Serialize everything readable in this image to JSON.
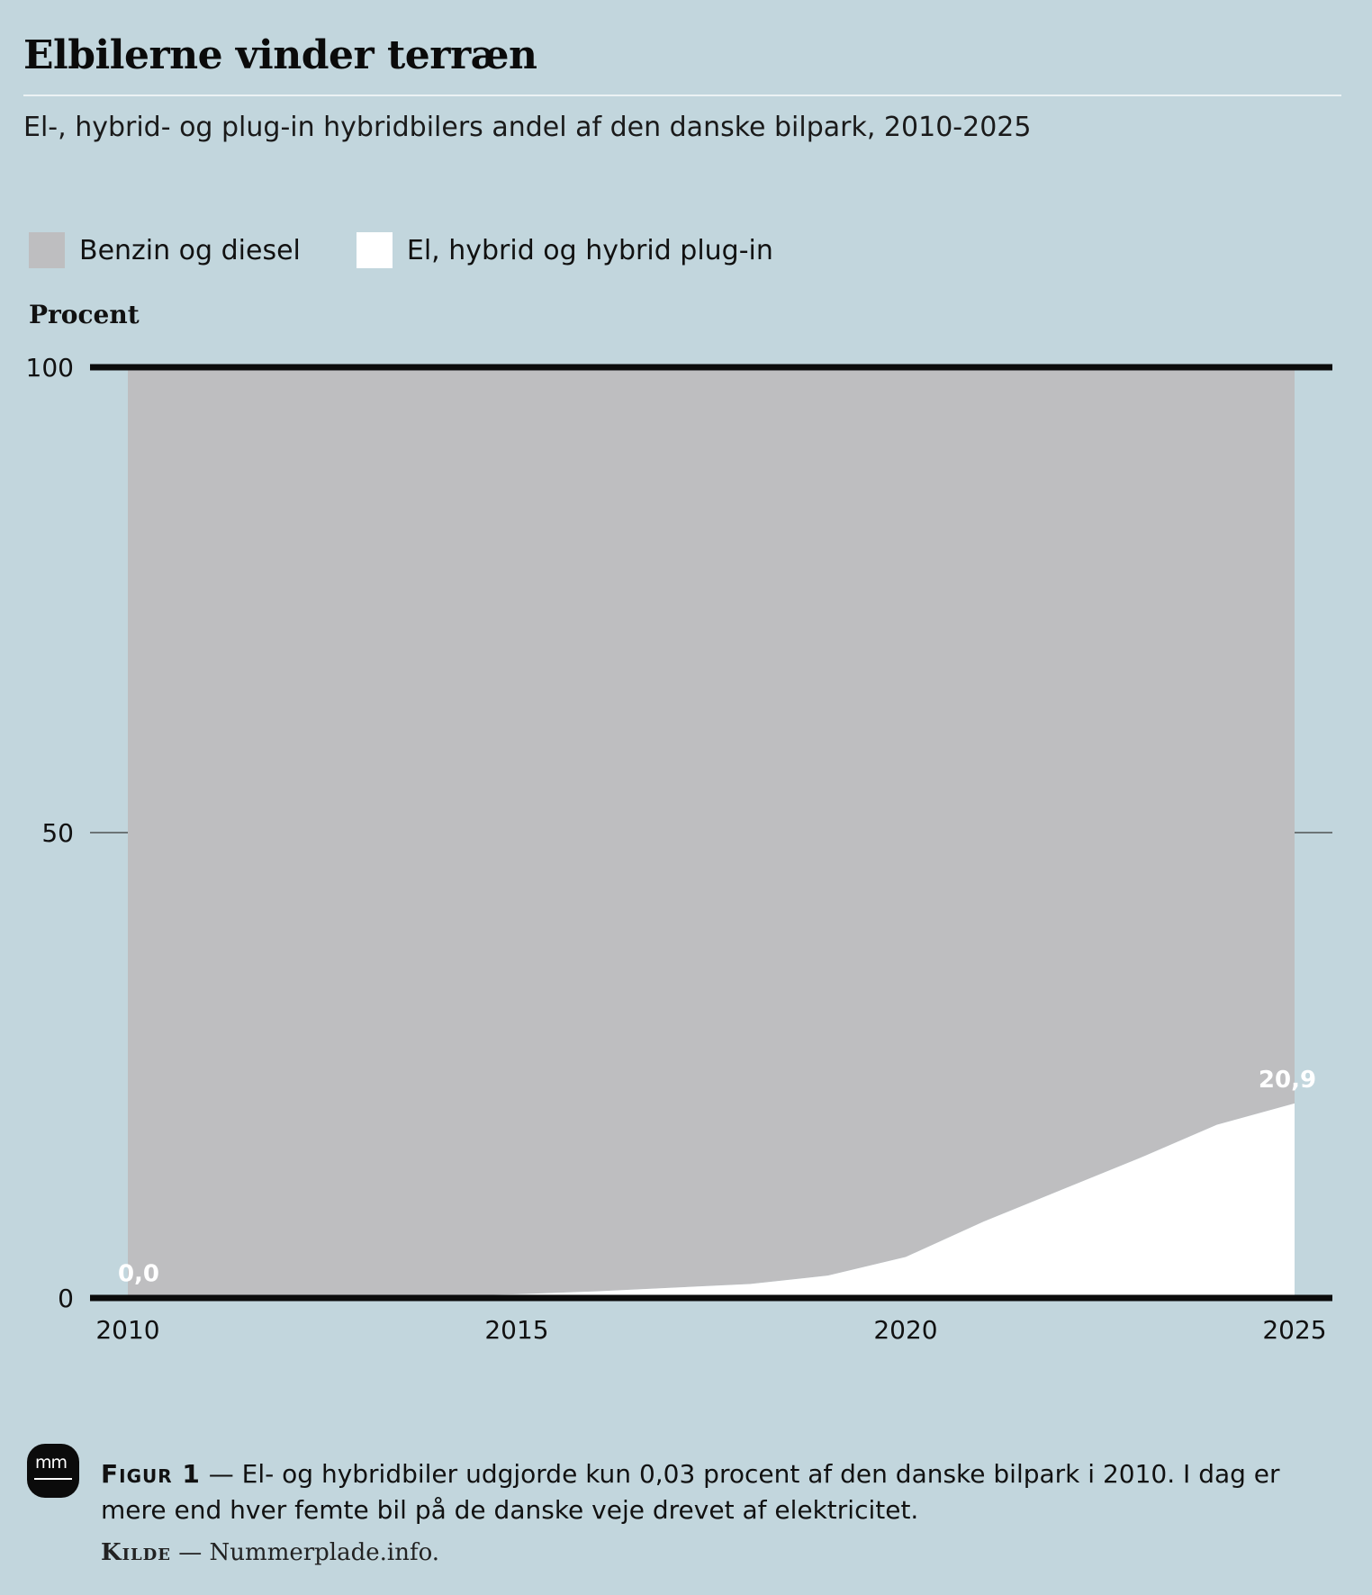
{
  "title": "Elbilerne vinder terræn",
  "subtitle": "El-, hybrid- og plug-in hybridbilers andel af den danske bilpark, 2010-2025",
  "legend": [
    {
      "label": "Benzin og diesel",
      "color": "#bebec0"
    },
    {
      "label": "El, hybrid og hybrid plug-in",
      "color": "#ffffff"
    }
  ],
  "chart_data": {
    "type": "area",
    "ylabel": "Procent",
    "ylim": [
      0,
      100
    ],
    "yticks": [
      "0",
      "50",
      "100"
    ],
    "xticks": [
      "2010",
      "2015",
      "2020",
      "2025"
    ],
    "x": [
      2010,
      2011,
      2012,
      2013,
      2014,
      2015,
      2016,
      2017,
      2018,
      2019,
      2020,
      2021,
      2022,
      2023,
      2024,
      2025
    ],
    "series": [
      {
        "name": "Benzin og diesel",
        "color": "#bebec0",
        "values": [
          99.97,
          99.96,
          99.95,
          99.9,
          99.8,
          99.6,
          99.3,
          98.9,
          98.5,
          97.6,
          95.6,
          91.8,
          88.4,
          85.0,
          81.4,
          79.1
        ]
      },
      {
        "name": "El, hybrid og hybrid plug-in",
        "color": "#ffffff",
        "values": [
          0.03,
          0.04,
          0.05,
          0.1,
          0.2,
          0.4,
          0.7,
          1.1,
          1.5,
          2.4,
          4.4,
          8.2,
          11.6,
          15.0,
          18.6,
          20.9
        ]
      }
    ],
    "annotations": [
      {
        "x": 2010,
        "text": "0,0"
      },
      {
        "x": 2025,
        "text": "20,9"
      }
    ]
  },
  "figure": {
    "label": "Figur 1",
    "text": "— El- og hybridbiler udgjorde kun 0,03 procent af den danske bilpark i 2010. I dag er mere end hver femte bil på de danske veje drevet af elektricitet."
  },
  "source": {
    "label": "Kilde",
    "text": "— Nummerplade.info."
  },
  "logo": {
    "text": "mm"
  }
}
